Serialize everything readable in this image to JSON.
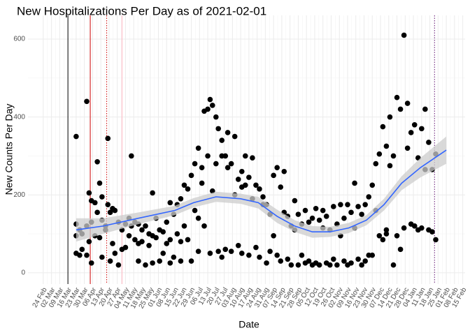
{
  "chart_data": {
    "type": "scatter",
    "title": "New Hospitalizations Per Day as of 2021-02-01",
    "x_label": "Date",
    "y_label": "New Counts Per Day",
    "color": "#000000",
    "grid": true,
    "xlim": [
      "2020-02-11",
      "2021-02-17"
    ],
    "ylim": [
      -29,
      661
    ],
    "yticks": [
      0,
      200,
      400,
      600
    ],
    "xticks": [
      {
        "value": "2020-02-24",
        "label": "24 Feb"
      },
      {
        "value": "2020-03-02",
        "label": "02 Mar"
      },
      {
        "value": "2020-03-09",
        "label": "09 Mar"
      },
      {
        "value": "2020-03-16",
        "label": "16 Mar"
      },
      {
        "value": "2020-03-23",
        "label": "23 Mar"
      },
      {
        "value": "2020-03-30",
        "label": "30 Mar"
      },
      {
        "value": "2020-04-06",
        "label": "06 Apr"
      },
      {
        "value": "2020-04-13",
        "label": "13 Apr"
      },
      {
        "value": "2020-04-20",
        "label": "20 Apr"
      },
      {
        "value": "2020-04-27",
        "label": "27 Apr"
      },
      {
        "value": "2020-05-04",
        "label": "04 May"
      },
      {
        "value": "2020-05-11",
        "label": "11 May"
      },
      {
        "value": "2020-05-18",
        "label": "18 May"
      },
      {
        "value": "2020-05-25",
        "label": "25 May"
      },
      {
        "value": "2020-06-01",
        "label": "01 Jun"
      },
      {
        "value": "2020-06-08",
        "label": "08 Jun"
      },
      {
        "value": "2020-06-15",
        "label": "15 Jun"
      },
      {
        "value": "2020-06-22",
        "label": "22 Jun"
      },
      {
        "value": "2020-06-29",
        "label": "29 Jun"
      },
      {
        "value": "2020-07-06",
        "label": "06 Jul"
      },
      {
        "value": "2020-07-13",
        "label": "13 Jul"
      },
      {
        "value": "2020-07-20",
        "label": "20 Jul"
      },
      {
        "value": "2020-07-27",
        "label": "27 Jul"
      },
      {
        "value": "2020-08-03",
        "label": "03 Aug"
      },
      {
        "value": "2020-08-10",
        "label": "10 Aug"
      },
      {
        "value": "2020-08-17",
        "label": "17 Aug"
      },
      {
        "value": "2020-08-24",
        "label": "24 Aug"
      },
      {
        "value": "2020-08-31",
        "label": "31 Aug"
      },
      {
        "value": "2020-09-07",
        "label": "07 Sep"
      },
      {
        "value": "2020-09-14",
        "label": "14 Sep"
      },
      {
        "value": "2020-09-21",
        "label": "21 Sep"
      },
      {
        "value": "2020-09-28",
        "label": "28 Sep"
      },
      {
        "value": "2020-10-05",
        "label": "05 Oct"
      },
      {
        "value": "2020-10-12",
        "label": "12 Oct"
      },
      {
        "value": "2020-10-19",
        "label": "19 Oct"
      },
      {
        "value": "2020-10-26",
        "label": "26 Oct"
      },
      {
        "value": "2020-11-02",
        "label": "02 Nov"
      },
      {
        "value": "2020-11-09",
        "label": "09 Nov"
      },
      {
        "value": "2020-11-16",
        "label": "16 Nov"
      },
      {
        "value": "2020-11-23",
        "label": "23 Nov"
      },
      {
        "value": "2020-11-30",
        "label": "30 Nov"
      },
      {
        "value": "2020-12-07",
        "label": "07 Dec"
      },
      {
        "value": "2020-12-14",
        "label": "14 Dec"
      },
      {
        "value": "2020-12-21",
        "label": "21 Dec"
      },
      {
        "value": "2020-12-28",
        "label": "28 Dec"
      },
      {
        "value": "2021-01-04",
        "label": "04 Jan"
      },
      {
        "value": "2021-01-11",
        "label": "11 Jan"
      },
      {
        "value": "2021-01-18",
        "label": "18 Jan"
      },
      {
        "value": "2021-01-25",
        "label": "25 Jan"
      },
      {
        "value": "2021-02-01",
        "label": "01 Feb"
      },
      {
        "value": "2021-02-08",
        "label": "08 Feb"
      },
      {
        "value": "2021-02-15",
        "label": "15 Feb"
      }
    ],
    "vlines": [
      {
        "x": "2020-03-16",
        "color": "#000000",
        "dash": "solid"
      },
      {
        "x": "2020-04-04",
        "color": "#cc0000",
        "dash": "solid"
      },
      {
        "x": "2020-04-18",
        "color": "#cc0000",
        "dash": "dotted"
      },
      {
        "x": "2020-05-01",
        "color": "#ffb6c1",
        "dash": "solid"
      },
      {
        "x": "2021-01-22",
        "color": "#6a1b7a",
        "dash": "dotted"
      }
    ],
    "smooth": {
      "color": "#3366ff",
      "band_color": "#cccccc",
      "x": [
        "2020-03-23",
        "2020-04-15",
        "2020-05-15",
        "2020-06-15",
        "2020-07-01",
        "2020-07-20",
        "2020-08-10",
        "2020-08-25",
        "2020-09-10",
        "2020-09-25",
        "2020-10-10",
        "2020-10-25",
        "2020-11-10",
        "2020-11-25",
        "2020-12-10",
        "2020-12-25",
        "2021-01-10",
        "2021-02-01"
      ],
      "values": [
        110,
        120,
        140,
        160,
        180,
        195,
        190,
        180,
        145,
        120,
        105,
        105,
        115,
        135,
        175,
        230,
        270,
        315
      ],
      "lower": [
        80,
        100,
        125,
        148,
        168,
        182,
        177,
        165,
        128,
        105,
        90,
        92,
        102,
        122,
        160,
        212,
        245,
        280
      ],
      "upper": [
        140,
        140,
        155,
        172,
        192,
        208,
        203,
        195,
        162,
        135,
        120,
        118,
        128,
        148,
        190,
        248,
        295,
        350
      ]
    },
    "x": [
      "2020-03-23",
      "2020-03-23",
      "2020-03-23",
      "2020-03-23",
      "2020-03-26",
      "2020-03-26",
      "2020-03-28",
      "2020-03-28",
      "2020-04-01",
      "2020-04-01",
      "2020-04-01",
      "2020-04-03",
      "2020-04-03",
      "2020-04-05",
      "2020-04-05",
      "2020-04-05",
      "2020-04-08",
      "2020-04-08",
      "2020-04-10",
      "2020-04-10",
      "2020-04-12",
      "2020-04-12",
      "2020-04-14",
      "2020-04-14",
      "2020-04-14",
      "2020-04-17",
      "2020-04-17",
      "2020-04-19",
      "2020-04-19",
      "2020-04-21",
      "2020-04-21",
      "2020-04-23",
      "2020-04-23",
      "2020-04-25",
      "2020-04-25",
      "2020-04-28",
      "2020-04-28",
      "2020-05-01",
      "2020-05-01",
      "2020-05-04",
      "2020-05-04",
      "2020-05-07",
      "2020-05-07",
      "2020-05-09",
      "2020-05-09",
      "2020-05-12",
      "2020-05-12",
      "2020-05-15",
      "2020-05-15",
      "2020-05-15",
      "2020-05-18",
      "2020-05-18",
      "2020-05-21",
      "2020-05-21",
      "2020-05-24",
      "2020-05-24",
      "2020-05-27",
      "2020-05-27",
      "2020-05-27",
      "2020-05-30",
      "2020-05-30",
      "2020-06-02",
      "2020-06-02",
      "2020-06-05",
      "2020-06-05",
      "2020-06-08",
      "2020-06-08",
      "2020-06-11",
      "2020-06-11",
      "2020-06-11",
      "2020-06-14",
      "2020-06-14",
      "2020-06-17",
      "2020-06-17",
      "2020-06-20",
      "2020-06-20",
      "2020-06-20",
      "2020-06-23",
      "2020-06-23",
      "2020-06-26",
      "2020-06-26",
      "2020-06-29",
      "2020-06-29",
      "2020-07-02",
      "2020-07-02",
      "2020-07-05",
      "2020-07-05",
      "2020-07-05",
      "2020-07-08",
      "2020-07-08",
      "2020-07-10",
      "2020-07-10",
      "2020-07-13",
      "2020-07-13",
      "2020-07-15",
      "2020-07-15",
      "2020-07-17",
      "2020-07-17",
      "2020-07-20",
      "2020-07-20",
      "2020-07-22",
      "2020-07-22",
      "2020-07-25",
      "2020-07-25",
      "2020-07-25",
      "2020-07-28",
      "2020-07-28",
      "2020-07-30",
      "2020-07-30",
      "2020-08-02",
      "2020-08-02",
      "2020-08-05",
      "2020-08-05",
      "2020-08-08",
      "2020-08-08",
      "2020-08-11",
      "2020-08-11",
      "2020-08-11",
      "2020-08-14",
      "2020-08-14",
      "2020-08-17",
      "2020-08-17",
      "2020-08-20",
      "2020-08-20",
      "2020-08-23",
      "2020-08-23",
      "2020-08-26",
      "2020-08-26",
      "2020-08-29",
      "2020-08-29",
      "2020-09-01",
      "2020-09-01",
      "2020-09-04",
      "2020-09-04",
      "2020-09-07",
      "2020-09-07",
      "2020-09-10",
      "2020-09-10",
      "2020-09-13",
      "2020-09-13",
      "2020-09-16",
      "2020-09-16",
      "2020-09-19",
      "2020-09-19",
      "2020-09-22",
      "2020-09-22",
      "2020-09-25",
      "2020-09-25",
      "2020-09-28",
      "2020-09-28",
      "2020-10-01",
      "2020-10-01",
      "2020-10-04",
      "2020-10-04",
      "2020-10-07",
      "2020-10-07",
      "2020-10-10",
      "2020-10-10",
      "2020-10-13",
      "2020-10-13",
      "2020-10-16",
      "2020-10-16",
      "2020-10-19",
      "2020-10-19",
      "2020-10-22",
      "2020-10-22",
      "2020-10-25",
      "2020-10-25",
      "2020-10-28",
      "2020-10-28",
      "2020-10-31",
      "2020-10-31",
      "2020-11-03",
      "2020-11-03",
      "2020-11-06",
      "2020-11-06",
      "2020-11-09",
      "2020-11-09",
      "2020-11-12",
      "2020-11-12",
      "2020-11-15",
      "2020-11-15",
      "2020-11-18",
      "2020-11-18",
      "2020-11-21",
      "2020-11-21",
      "2020-11-24",
      "2020-11-24",
      "2020-11-27",
      "2020-11-27",
      "2020-11-30",
      "2020-11-30",
      "2020-12-03",
      "2020-12-03",
      "2020-12-06",
      "2020-12-06",
      "2020-12-09",
      "2020-12-09",
      "2020-12-12",
      "2020-12-12",
      "2020-12-12",
      "2020-12-15",
      "2020-12-15",
      "2020-12-18",
      "2020-12-18",
      "2020-12-21",
      "2020-12-21",
      "2020-12-24",
      "2020-12-24",
      "2020-12-27",
      "2020-12-27",
      "2020-12-30",
      "2020-12-30",
      "2021-01-02",
      "2021-01-02",
      "2021-01-05",
      "2021-01-05",
      "2021-01-08",
      "2021-01-08",
      "2021-01-11",
      "2021-01-11",
      "2021-01-14",
      "2021-01-14",
      "2021-01-17",
      "2021-01-17",
      "2021-01-20",
      "2021-01-20",
      "2021-01-23",
      "2021-01-23"
    ],
    "values": [
      350,
      125,
      95,
      50,
      45,
      110,
      100,
      60,
      440,
      45,
      120,
      205,
      80,
      185,
      130,
      25,
      180,
      95,
      285,
      155,
      230,
      90,
      195,
      135,
      40,
      110,
      120,
      345,
      175,
      155,
      30,
      165,
      75,
      160,
      50,
      130,
      20,
      110,
      60,
      125,
      65,
      140,
      95,
      300,
      120,
      130,
      85,
      125,
      75,
      30,
      110,
      80,
      120,
      20,
      100,
      70,
      205,
      95,
      25,
      140,
      90,
      110,
      30,
      105,
      50,
      130,
      75,
      180,
      85,
      25,
      150,
      40,
      175,
      100,
      190,
      80,
      30,
      225,
      120,
      215,
      85,
      250,
      30,
      280,
      160,
      320,
      140,
      55,
      270,
      230,
      415,
      120,
      420,
      300,
      445,
      50,
      430,
      210,
      400,
      280,
      370,
      55,
      340,
      300,
      40,
      300,
      60,
      360,
      270,
      280,
      55,
      350,
      200,
      240,
      70,
      220,
      260,
      50,
      225,
      300,
      245,
      45,
      295,
      190,
      225,
      65,
      215,
      40,
      195,
      175,
      175,
      25,
      150,
      55,
      250,
      95,
      270,
      45,
      220,
      30,
      260,
      155,
      145,
      35,
      120,
      20,
      185,
      110,
      150,
      20,
      125,
      45,
      160,
      25,
      130,
      30,
      140,
      20,
      165,
      25,
      135,
      20,
      160,
      115,
      145,
      25,
      110,
      20,
      170,
      35,
      125,
      20,
      175,
      95,
      140,
      30,
      175,
      20,
      155,
      25,
      230,
      115,
      170,
      35,
      150,
      20,
      175,
      30,
      195,
      45,
      225,
      45,
      280,
      160,
      305,
      95,
      375,
      85,
      325,
      110,
      100,
      400,
      275,
      300,
      20,
      450,
      95,
      420,
      60,
      610,
      115,
      435,
      320,
      360,
      125,
      380,
      120,
      295,
      110,
      370,
      115,
      420,
      265,
      335,
      110,
      265,
      105,
      305,
      85
    ]
  }
}
